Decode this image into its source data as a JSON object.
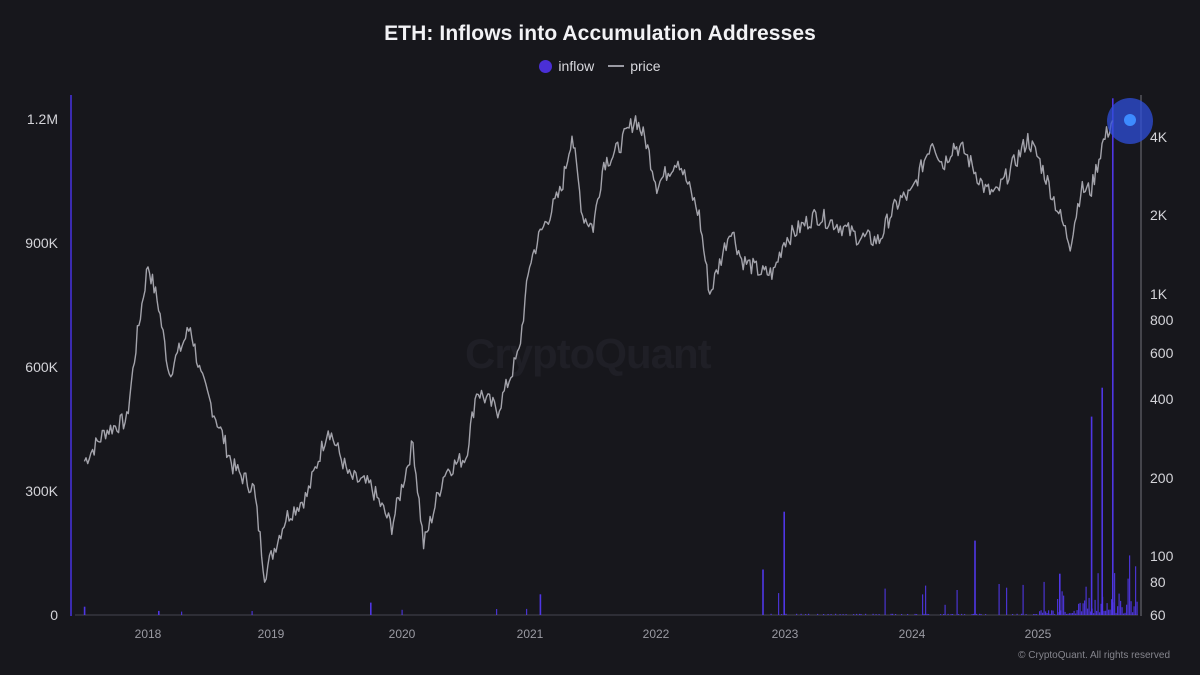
{
  "title": "ETH: Inflows into Accumulation Addresses",
  "legend": {
    "inflow_label": "inflow",
    "price_label": "price",
    "inflow_color": "#4a2fd6",
    "price_color": "#9a9aa3"
  },
  "watermark": "CryptoQuant",
  "copyright": "© CryptoQuant. All rights reserved",
  "colors": {
    "background": "#17171c",
    "inflow_bar": "#5238f0",
    "price_line": "#a3a3ab",
    "highlight": "#2f6bff"
  },
  "chart_data": {
    "type": "bar+line",
    "title": "ETH: Inflows into Accumulation Addresses",
    "legend": [
      "inflow",
      "price"
    ],
    "legend_position": "top-center",
    "grid": false,
    "x": {
      "label": "",
      "ticks": [
        "2018",
        "2019",
        "2020",
        "2021",
        "2022",
        "2023",
        "2024",
        "2025"
      ],
      "range": [
        "2017-07",
        "2025-08"
      ]
    },
    "y_left": {
      "label": "inflow",
      "scale": "linear",
      "ticks": [
        "0",
        "300K",
        "600K",
        "900K",
        "1.2M"
      ],
      "range": [
        0,
        1250000
      ]
    },
    "y_right": {
      "label": "price",
      "scale": "log",
      "ticks": [
        "60",
        "80",
        "100",
        "200",
        "400",
        "600",
        "800",
        "1K",
        "2K",
        "4K"
      ],
      "range": [
        60,
        4800
      ]
    },
    "series": [
      {
        "name": "price",
        "type": "line",
        "points": [
          [
            "2017-07",
            230
          ],
          [
            "2017-09",
            300
          ],
          [
            "2017-11",
            330
          ],
          [
            "2017-12",
            700
          ],
          [
            "2018-01",
            1300
          ],
          [
            "2018-02",
            900
          ],
          [
            "2018-03",
            500
          ],
          [
            "2018-05",
            750
          ],
          [
            "2018-06",
            480
          ],
          [
            "2018-08",
            290
          ],
          [
            "2018-09",
            220
          ],
          [
            "2018-11",
            180
          ],
          [
            "2018-12",
            85
          ],
          [
            "2019-02",
            140
          ],
          [
            "2019-04",
            170
          ],
          [
            "2019-06",
            310
          ],
          [
            "2019-08",
            200
          ],
          [
            "2019-10",
            185
          ],
          [
            "2019-12",
            130
          ],
          [
            "2020-02",
            270
          ],
          [
            "2020-03",
            110
          ],
          [
            "2020-05",
            210
          ],
          [
            "2020-07",
            240
          ],
          [
            "2020-08",
            430
          ],
          [
            "2020-10",
            360
          ],
          [
            "2020-12",
            600
          ],
          [
            "2021-01",
            1300
          ],
          [
            "2021-02",
            1700
          ],
          [
            "2021-04",
            2500
          ],
          [
            "2021-05",
            4100
          ],
          [
            "2021-06",
            2000
          ],
          [
            "2021-07",
            1800
          ],
          [
            "2021-08",
            3200
          ],
          [
            "2021-09",
            3400
          ],
          [
            "2021-11",
            4700
          ],
          [
            "2021-12",
            3800
          ],
          [
            "2022-01",
            2600
          ],
          [
            "2022-03",
            3300
          ],
          [
            "2022-05",
            2000
          ],
          [
            "2022-06",
            1000
          ],
          [
            "2022-08",
            1800
          ],
          [
            "2022-09",
            1350
          ],
          [
            "2022-11",
            1200
          ],
          [
            "2022-12",
            1200
          ],
          [
            "2023-01",
            1600
          ],
          [
            "2023-04",
            2000
          ],
          [
            "2023-06",
            1850
          ],
          [
            "2023-08",
            1650
          ],
          [
            "2023-10",
            1600
          ],
          [
            "2023-11",
            2000
          ],
          [
            "2023-12",
            2300
          ],
          [
            "2024-01",
            2400
          ],
          [
            "2024-03",
            3900
          ],
          [
            "2024-04",
            3100
          ],
          [
            "2024-05",
            3700
          ],
          [
            "2024-06",
            3500
          ],
          [
            "2024-08",
            2500
          ],
          [
            "2024-09",
            2400
          ],
          [
            "2024-11",
            3300
          ],
          [
            "2024-12",
            3900
          ],
          [
            "2025-01",
            3300
          ],
          [
            "2025-02",
            2600
          ],
          [
            "2025-04",
            1550
          ],
          [
            "2025-05",
            2500
          ],
          [
            "2025-06",
            2500
          ],
          [
            "2025-07",
            3700
          ],
          [
            "2025-08",
            4600
          ]
        ]
      },
      {
        "name": "inflow",
        "type": "bar",
        "description": "near-zero baseline 2017-2024 with sporadic spikes; large surge in mid-2025",
        "notable_values": [
          [
            "2017-07",
            20000
          ],
          [
            "2018-02",
            10000
          ],
          [
            "2019-10",
            30000
          ],
          [
            "2021-02",
            50000
          ],
          [
            "2022-11",
            110000
          ],
          [
            "2023-01",
            250000
          ],
          [
            "2024-07",
            180000
          ],
          [
            "2025-03",
            100000
          ],
          [
            "2025-06",
            480000
          ],
          [
            "2025-07",
            550000
          ],
          [
            "2025-08",
            1250000
          ]
        ]
      }
    ],
    "annotations": [
      {
        "type": "highlight-circle",
        "at": [
          "2025-08",
          4600
        ],
        "color": "#2f6bff"
      }
    ]
  },
  "axis_labels": {
    "left": [
      "1.2M",
      "900K",
      "600K",
      "300K",
      "0"
    ],
    "right": [
      "4K",
      "2K",
      "1K",
      "800",
      "600",
      "400",
      "200",
      "100",
      "80",
      "60"
    ],
    "x": [
      "2018",
      "2019",
      "2020",
      "2021",
      "2022",
      "2023",
      "2024",
      "2025"
    ]
  }
}
